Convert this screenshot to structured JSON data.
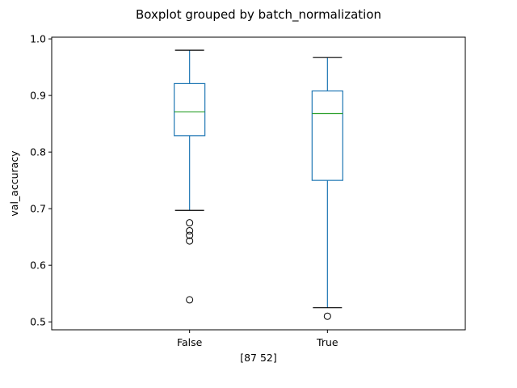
{
  "chart_data": {
    "type": "box",
    "title": "Boxplot grouped by batch_normalization",
    "xlabel": "[87 52]",
    "ylabel": "val_accuracy",
    "ylim": [
      0.486,
      1.003
    ],
    "yticks": [
      0.5,
      0.6,
      0.7,
      0.8,
      0.9,
      1.0
    ],
    "ytick_labels": [
      "0.5",
      "0.6",
      "0.7",
      "0.8",
      "0.9",
      "1.0"
    ],
    "grid": false,
    "colors": {
      "box": "#1f77b4",
      "median": "#2ca02c",
      "whisker": "#1f77b4",
      "cap": "#000000",
      "flier": "#000000"
    },
    "categories": [
      "False",
      "True"
    ],
    "boxes": [
      {
        "label": "False",
        "whisker_low": 0.697,
        "q1": 0.829,
        "median": 0.871,
        "q3": 0.921,
        "whisker_high": 0.98,
        "fliers": [
          0.675,
          0.661,
          0.653,
          0.643,
          0.539
        ]
      },
      {
        "label": "True",
        "whisker_low": 0.525,
        "q1": 0.75,
        "median": 0.868,
        "q3": 0.908,
        "whisker_high": 0.967,
        "fliers": [
          0.51
        ]
      }
    ]
  }
}
